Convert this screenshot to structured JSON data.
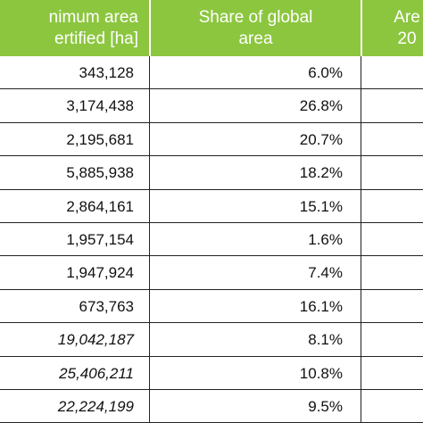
{
  "table": {
    "header": [
      [
        "nimum area",
        "ertified [ha]"
      ],
      [
        "Share of global",
        "area"
      ],
      [
        "Are",
        "20"
      ]
    ],
    "rows": [
      [
        "343,128",
        "6.0%"
      ],
      [
        "3,174,438",
        "26.8%"
      ],
      [
        "2,195,681",
        "20.7%"
      ],
      [
        "5,885,938",
        "18.2%"
      ],
      [
        "2,864,161",
        "15.1%"
      ],
      [
        "1,957,154",
        "1.6%"
      ],
      [
        "1,947,924",
        "7.4%"
      ],
      [
        "673,763",
        "16.1%"
      ],
      [
        "19,042,187",
        "8.1%"
      ],
      [
        "25,406,211",
        "10.8%"
      ],
      [
        "22,224,199",
        "9.5%"
      ]
    ]
  }
}
